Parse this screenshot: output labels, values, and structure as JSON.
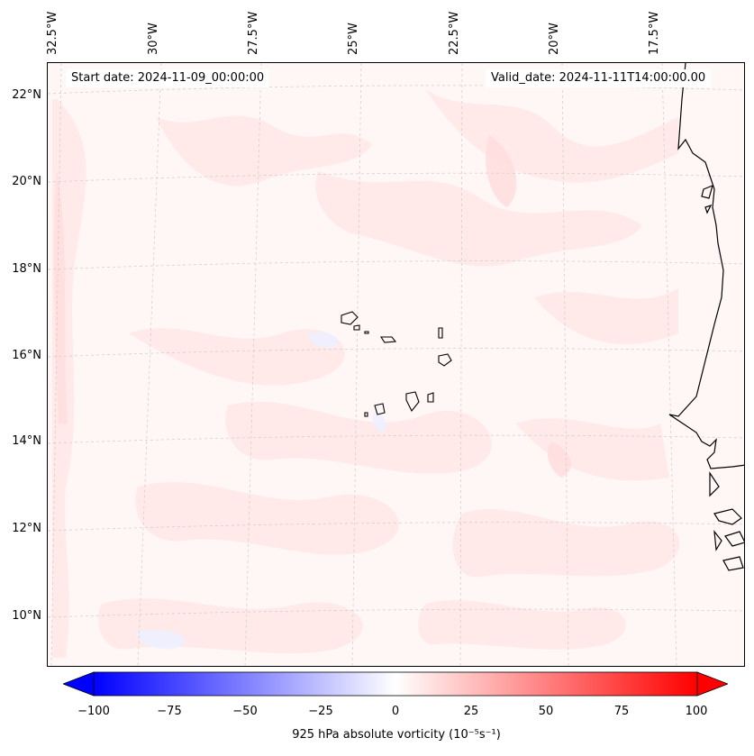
{
  "map": {
    "start_label": "Start date: 2024-11-09_00:00:00",
    "valid_label": "Valid_date: 2024-11-11T14:00:00.00",
    "lon_labels": [
      "32.5°W",
      "30°W",
      "27.5°W",
      "25°W",
      "22.5°W",
      "20°W",
      "17.5°W"
    ],
    "lat_labels": [
      "22°N",
      "20°N",
      "18°N",
      "16°N",
      "14°N",
      "12°N",
      "10°N"
    ],
    "background_color": "#fff6f6",
    "coast_color": "#000000"
  },
  "colorbar": {
    "ticks": [
      "−100",
      "−75",
      "−50",
      "−25",
      "0",
      "25",
      "50",
      "75",
      "100"
    ],
    "label": "925 hPa absolute vorticity (10⁻⁵s⁻¹)",
    "min": -100,
    "max": 100,
    "low_color": "#0000ff",
    "mid_color": "#ffffff",
    "high_color": "#ff0000"
  }
}
